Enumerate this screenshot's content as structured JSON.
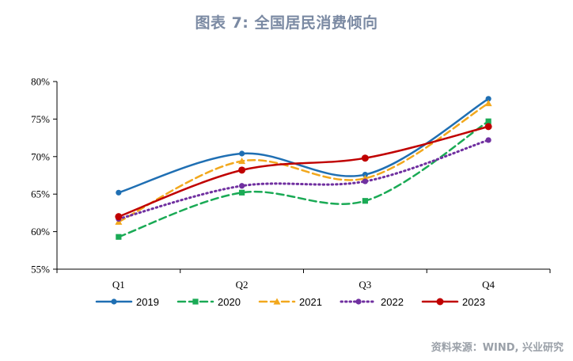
{
  "title": "图表 7:  全国居民消费倾向",
  "source": "资料来源：WIND, 兴业研究",
  "chart_data": {
    "type": "line",
    "smooth": true,
    "categories": [
      "Q1",
      "Q2",
      "Q3",
      "Q4"
    ],
    "y_ticks": [
      "55%",
      "60%",
      "65%",
      "70%",
      "75%",
      "80%"
    ],
    "ylim": [
      55,
      80
    ],
    "grid": false,
    "legend_position": "bottom",
    "series": [
      {
        "name": "2019",
        "values": [
          65.2,
          70.4,
          67.6,
          77.7
        ],
        "color": "#1f6fb3",
        "dash": "solid",
        "marker": "circle"
      },
      {
        "name": "2020",
        "values": [
          59.3,
          65.2,
          64.1,
          74.7
        ],
        "color": "#1aaa55",
        "dash": "dashed",
        "marker": "square"
      },
      {
        "name": "2021",
        "values": [
          61.3,
          69.4,
          67.1,
          77.1
        ],
        "color": "#f2a81d",
        "dash": "dashed",
        "marker": "triangle"
      },
      {
        "name": "2022",
        "values": [
          61.7,
          66.1,
          66.7,
          72.2
        ],
        "color": "#7030a0",
        "dash": "dotted",
        "marker": "circle"
      },
      {
        "name": "2023",
        "values": [
          62.0,
          68.2,
          69.8,
          74.0
        ],
        "color": "#c00000",
        "dash": "solid",
        "marker": "circle"
      }
    ]
  }
}
